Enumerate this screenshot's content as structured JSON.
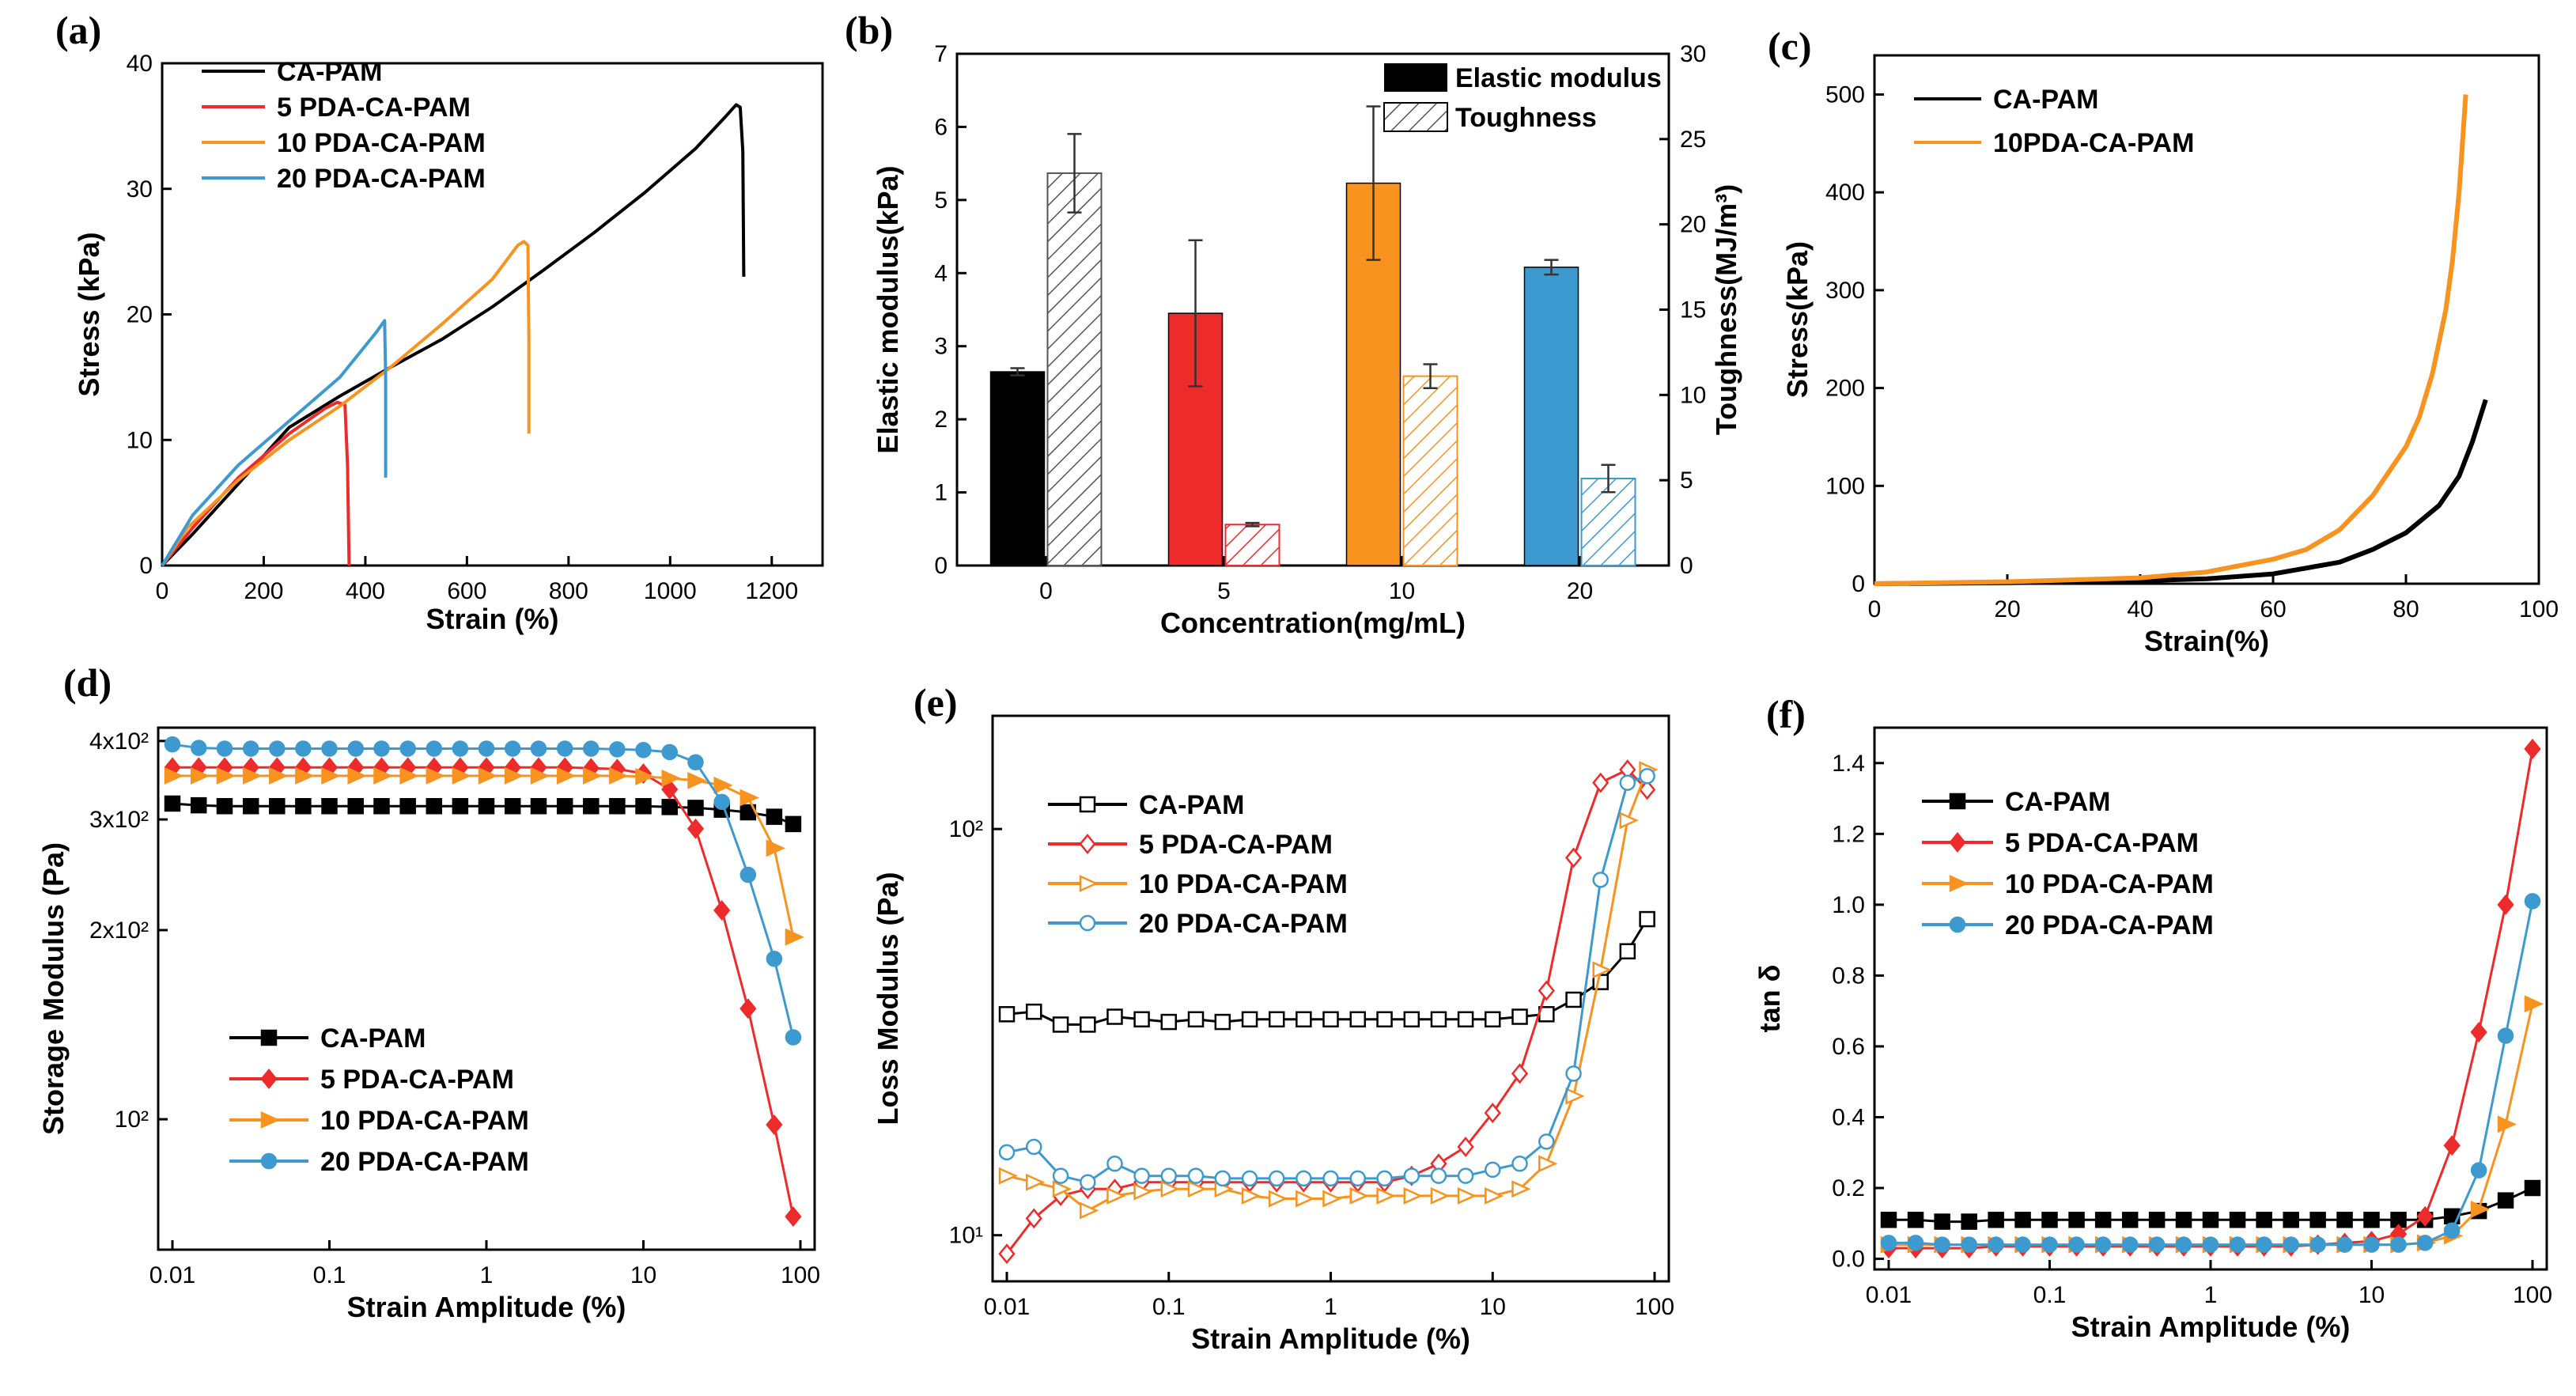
{
  "chart_data": [
    {
      "panel": "(a)",
      "type": "line",
      "xlabel": "Strain (%)",
      "ylabel": "Stress (kPa)",
      "xlim": [
        0,
        1300
      ],
      "ylim": [
        0,
        40
      ],
      "xticks": [
        0,
        200,
        400,
        600,
        800,
        1000,
        1200
      ],
      "yticks": [
        0,
        10,
        20,
        30,
        40
      ],
      "series": [
        {
          "name": "CA-PAM",
          "color": "#000000",
          "points": [
            [
              0,
              0
            ],
            [
              60,
              2.5
            ],
            [
              150,
              6.5
            ],
            [
              250,
              11
            ],
            [
              350,
              13.5
            ],
            [
              450,
              15.8
            ],
            [
              550,
              18
            ],
            [
              650,
              20.6
            ],
            [
              750,
              23.5
            ],
            [
              850,
              26.5
            ],
            [
              950,
              29.7
            ],
            [
              1050,
              33.2
            ],
            [
              1110,
              35.8
            ],
            [
              1130,
              36.7
            ],
            [
              1138,
              36.5
            ],
            [
              1143,
              33
            ],
            [
              1145,
              23
            ]
          ]
        },
        {
          "name": "5 PDA-CA-PAM",
          "color": "#ee2b2b",
          "points": [
            [
              0,
              0
            ],
            [
              60,
              3
            ],
            [
              150,
              7
            ],
            [
              250,
              10.5
            ],
            [
              320,
              12.5
            ],
            [
              345,
              13
            ],
            [
              360,
              12.8
            ],
            [
              365,
              8
            ],
            [
              368,
              0
            ]
          ]
        },
        {
          "name": "10 PDA-CA-PAM",
          "color": "#f7931e",
          "points": [
            [
              0,
              0
            ],
            [
              50,
              3
            ],
            [
              150,
              6.8
            ],
            [
              250,
              10
            ],
            [
              350,
              12.7
            ],
            [
              450,
              15.8
            ],
            [
              550,
              19.2
            ],
            [
              650,
              22.8
            ],
            [
              700,
              25.5
            ],
            [
              712,
              25.8
            ],
            [
              720,
              25.5
            ],
            [
              722,
              18
            ],
            [
              722,
              10.5
            ]
          ]
        },
        {
          "name": "20 PDA-CA-PAM",
          "color": "#3d9ad1",
          "points": [
            [
              0,
              0
            ],
            [
              60,
              4
            ],
            [
              150,
              8
            ],
            [
              250,
              11.5
            ],
            [
              350,
              15
            ],
            [
              420,
              18.5
            ],
            [
              438,
              19.5
            ],
            [
              440,
              15
            ],
            [
              440,
              7
            ]
          ]
        }
      ]
    },
    {
      "panel": "(b)",
      "type": "bar",
      "xlabel": "Concentration(mg/mL)",
      "ylabel": "Elastic modulus(kPa)",
      "y2label": "Toughness(MJ/m³)",
      "categories": [
        "0",
        "5",
        "10",
        "20"
      ],
      "ylim": [
        0,
        7
      ],
      "y2lim": [
        0,
        30
      ],
      "yticks": [
        0,
        1,
        2,
        3,
        4,
        5,
        6,
        7
      ],
      "y2ticks": [
        0,
        5,
        10,
        15,
        20,
        25,
        30
      ],
      "colors": [
        "#000000",
        "#ee2b2b",
        "#f7931e",
        "#3d9ad1"
      ],
      "series": [
        {
          "name": "Elastic modulus",
          "axis": "left",
          "values": [
            2.65,
            3.45,
            5.23,
            4.08
          ],
          "errors": [
            0.05,
            1.0,
            1.05,
            0.1
          ]
        },
        {
          "name": "Toughness",
          "axis": "right",
          "values": [
            23.0,
            2.4,
            11.1,
            5.1
          ],
          "errors": [
            2.3,
            0.1,
            0.7,
            0.8
          ]
        }
      ]
    },
    {
      "panel": "(c)",
      "type": "line",
      "xlabel": "Strain(%)",
      "ylabel": "Stress(kPa)",
      "xlim": [
        0,
        100
      ],
      "ylim": [
        0,
        540
      ],
      "xticks": [
        0,
        20,
        40,
        60,
        80,
        100
      ],
      "yticks": [
        0,
        100,
        200,
        300,
        400,
        500
      ],
      "series": [
        {
          "name": "CA-PAM",
          "color": "#000000",
          "points": [
            [
              0,
              0
            ],
            [
              20,
              1
            ],
            [
              40,
              3
            ],
            [
              50,
              5
            ],
            [
              60,
              10
            ],
            [
              70,
              22
            ],
            [
              75,
              35
            ],
            [
              80,
              52
            ],
            [
              85,
              80
            ],
            [
              88,
              110
            ],
            [
              90,
              145
            ],
            [
              92,
              188
            ]
          ]
        },
        {
          "name": "10PDA-CA-PAM",
          "color": "#f7931e",
          "points": [
            [
              0,
              0
            ],
            [
              20,
              2
            ],
            [
              40,
              6
            ],
            [
              50,
              12
            ],
            [
              60,
              25
            ],
            [
              65,
              35
            ],
            [
              70,
              55
            ],
            [
              75,
              90
            ],
            [
              80,
              140
            ],
            [
              82,
              170
            ],
            [
              84,
              215
            ],
            [
              86,
              280
            ],
            [
              87,
              330
            ],
            [
              88,
              400
            ],
            [
              88.5,
              450
            ],
            [
              89,
              500
            ]
          ]
        }
      ]
    },
    {
      "panel": "(d)",
      "type": "line",
      "xlabel": "Strain Amplitude (%)",
      "ylabel": "Storage Modulus (Pa)",
      "xscale": "log",
      "yscale": "log",
      "xlim": [
        0.01,
        100
      ],
      "ylim": [
        62,
        420
      ],
      "xticks": [
        "0.01",
        "0.1",
        "1",
        "10",
        "100"
      ],
      "ytick_labels": [
        "10²",
        "2x10²",
        "3x10²",
        "4x10²"
      ],
      "ytick_values": [
        100,
        200,
        300,
        400
      ],
      "x": [
        0.01,
        0.0147,
        0.0215,
        0.0316,
        0.0464,
        0.0681,
        0.1,
        0.147,
        0.215,
        0.316,
        0.464,
        0.681,
        1,
        1.47,
        2.15,
        3.16,
        4.64,
        6.81,
        10,
        14.7,
        21.5,
        31.6,
        46.4,
        68.1,
        90
      ],
      "series": [
        {
          "name": "CA-PAM",
          "color": "#000000",
          "marker": "square",
          "values": [
            318,
            316,
            315,
            315,
            315,
            315,
            315,
            315,
            315,
            315,
            315,
            315,
            315,
            315,
            315,
            315,
            315,
            315,
            315,
            314,
            313,
            311,
            308,
            303,
            295
          ]
        },
        {
          "name": "5 PDA-CA-PAM",
          "color": "#ee2b2b",
          "marker": "diamond",
          "values": [
            363,
            363,
            363,
            363,
            363,
            363,
            363,
            363,
            363,
            363,
            363,
            363,
            363,
            363,
            363,
            363,
            362,
            361,
            355,
            335,
            290,
            215,
            150,
            98,
            70
          ]
        },
        {
          "name": "10 PDA-CA-PAM",
          "color": "#f7931e",
          "marker": "triangle-right",
          "values": [
            352,
            352,
            352,
            352,
            352,
            352,
            352,
            352,
            352,
            352,
            352,
            352,
            352,
            352,
            352,
            352,
            352,
            352,
            351,
            349,
            346,
            340,
            325,
            270,
            195
          ]
        },
        {
          "name": "20 PDA-CA-PAM",
          "color": "#3d9ad1",
          "marker": "circle",
          "values": [
            395,
            390,
            389,
            389,
            389,
            389,
            389,
            389,
            389,
            389,
            389,
            389,
            389,
            389,
            389,
            389,
            389,
            388,
            387,
            384,
            370,
            320,
            245,
            180,
            135
          ]
        }
      ]
    },
    {
      "panel": "(e)",
      "type": "line",
      "xlabel": "Strain Amplitude (%)",
      "ylabel": "Loss Modulus (Pa)",
      "xscale": "log",
      "yscale": "log",
      "xlim": [
        0.01,
        100
      ],
      "ylim": [
        7.7,
        190
      ],
      "xticks": [
        "0.01",
        "0.1",
        "1",
        "10",
        "100"
      ],
      "ytick_labels": [
        "10¹",
        "10²"
      ],
      "ytick_values": [
        10,
        100
      ],
      "x": [
        0.01,
        0.0147,
        0.0215,
        0.0316,
        0.0464,
        0.0681,
        0.1,
        0.147,
        0.215,
        0.316,
        0.464,
        0.681,
        1,
        1.47,
        2.15,
        3.16,
        4.64,
        6.81,
        10,
        14.7,
        21.5,
        31.6,
        46.4,
        68.1,
        90
      ],
      "series": [
        {
          "name": "CA-PAM",
          "color": "#000000",
          "marker": "square-open",
          "values": [
            35,
            35.5,
            33,
            33,
            34.5,
            34,
            33.5,
            34,
            33.5,
            34,
            34,
            34,
            34,
            34,
            34,
            34,
            34,
            34,
            34,
            34.5,
            35,
            38,
            42,
            50,
            60
          ]
        },
        {
          "name": "5 PDA-CA-PAM",
          "color": "#ee2b2b",
          "marker": "diamond-open",
          "values": [
            9,
            11,
            12.5,
            13,
            13,
            13.5,
            13.5,
            13.5,
            13.5,
            13.5,
            13.5,
            13.5,
            13.5,
            13.5,
            13.5,
            14,
            15,
            16.5,
            20,
            25,
            40,
            85,
            130,
            140,
            125
          ]
        },
        {
          "name": "10 PDA-CA-PAM",
          "color": "#f7931e",
          "marker": "triangle-right-open",
          "values": [
            14,
            13.5,
            13,
            11.5,
            12.5,
            12.8,
            13,
            13,
            13,
            12.5,
            12.3,
            12.3,
            12.3,
            12.5,
            12.5,
            12.5,
            12.5,
            12.5,
            12.5,
            13,
            15,
            22,
            45,
            105,
            140
          ]
        },
        {
          "name": "20 PDA-CA-PAM",
          "color": "#3d9ad1",
          "marker": "circle-open",
          "values": [
            16,
            16.5,
            14,
            13.5,
            15,
            14,
            14,
            14,
            13.8,
            13.8,
            13.8,
            13.8,
            13.8,
            13.8,
            13.8,
            14,
            14,
            14,
            14.5,
            15,
            17,
            25,
            75,
            130,
            135
          ]
        }
      ]
    },
    {
      "panel": "(f)",
      "type": "line",
      "xlabel": "Strain Amplitude (%)",
      "ylabel": "tan δ",
      "xscale": "log",
      "yscale": "linear",
      "xlim": [
        0.01,
        100
      ],
      "ylim": [
        -0.03,
        1.5
      ],
      "xticks": [
        "0.01",
        "0.1",
        "1",
        "10",
        "100"
      ],
      "yticks": [
        "0.0",
        "0.2",
        "0.4",
        "0.6",
        "0.8",
        "1.0",
        "1.2",
        "1.4"
      ],
      "x": [
        0.01,
        0.0147,
        0.0215,
        0.0316,
        0.0464,
        0.0681,
        0.1,
        0.147,
        0.215,
        0.316,
        0.464,
        0.681,
        1,
        1.47,
        2.15,
        3.16,
        4.64,
        6.81,
        10,
        14.7,
        21.5,
        31.6,
        46.4,
        68.1,
        100
      ],
      "series": [
        {
          "name": "CA-PAM",
          "color": "#000000",
          "marker": "square",
          "values": [
            0.11,
            0.11,
            0.105,
            0.105,
            0.11,
            0.11,
            0.11,
            0.11,
            0.11,
            0.11,
            0.11,
            0.11,
            0.11,
            0.11,
            0.11,
            0.11,
            0.11,
            0.11,
            0.11,
            0.11,
            0.11,
            0.12,
            0.135,
            0.165,
            0.2
          ]
        },
        {
          "name": "5 PDA-CA-PAM",
          "color": "#ee2b2b",
          "marker": "diamond",
          "values": [
            0.03,
            0.03,
            0.03,
            0.03,
            0.035,
            0.035,
            0.035,
            0.035,
            0.035,
            0.035,
            0.035,
            0.035,
            0.035,
            0.035,
            0.035,
            0.035,
            0.04,
            0.045,
            0.05,
            0.07,
            0.12,
            0.32,
            0.64,
            1.0,
            1.44
          ]
        },
        {
          "name": "10 PDA-CA-PAM",
          "color": "#f7931e",
          "marker": "triangle-right",
          "values": [
            0.04,
            0.04,
            0.04,
            0.04,
            0.04,
            0.04,
            0.04,
            0.04,
            0.04,
            0.04,
            0.04,
            0.04,
            0.04,
            0.04,
            0.04,
            0.04,
            0.04,
            0.04,
            0.04,
            0.04,
            0.045,
            0.065,
            0.14,
            0.38,
            0.72
          ]
        },
        {
          "name": "20 PDA-CA-PAM",
          "color": "#3d9ad1",
          "marker": "circle",
          "values": [
            0.045,
            0.045,
            0.04,
            0.04,
            0.04,
            0.04,
            0.04,
            0.04,
            0.04,
            0.04,
            0.04,
            0.04,
            0.04,
            0.04,
            0.04,
            0.04,
            0.04,
            0.04,
            0.04,
            0.04,
            0.045,
            0.08,
            0.25,
            0.63,
            1.01
          ]
        }
      ]
    }
  ]
}
